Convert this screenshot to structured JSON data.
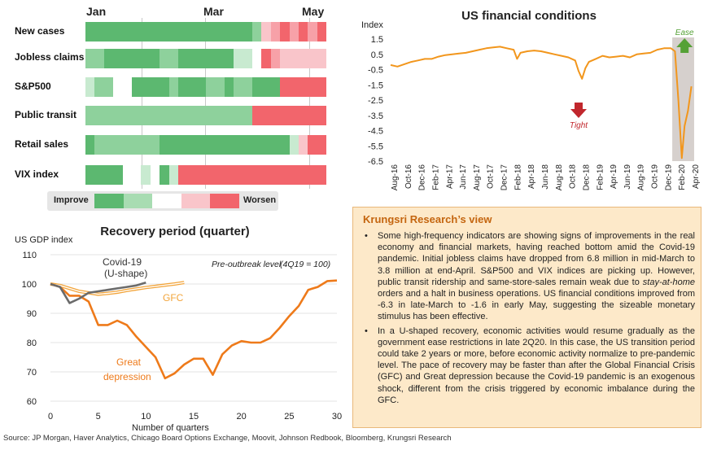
{
  "heatmap": {
    "months": [
      "Jan",
      "Mar",
      "May"
    ],
    "rows": [
      {
        "label": "New cases",
        "cells": [
          1,
          1,
          1,
          1,
          1,
          1,
          1,
          1,
          1,
          1,
          1,
          1,
          1,
          1,
          1,
          1,
          1,
          1,
          2,
          4,
          5,
          6,
          5,
          6,
          5,
          6
        ]
      },
      {
        "label": "Jobless claims",
        "cells": [
          2,
          2,
          1,
          1,
          1,
          1,
          1,
          1,
          2,
          2,
          1,
          1,
          1,
          1,
          1,
          1,
          3,
          3,
          0,
          6,
          5,
          4,
          4,
          4,
          4,
          4
        ]
      },
      {
        "label": "S&P500",
        "cells": [
          3,
          2,
          2,
          0,
          0,
          1,
          1,
          1,
          1,
          2,
          1,
          1,
          1,
          2,
          2,
          1,
          2,
          2,
          1,
          1,
          1,
          6,
          6,
          6,
          6,
          6
        ]
      },
      {
        "label": "Public transit",
        "cells": [
          2,
          2,
          2,
          2,
          2,
          2,
          2,
          2,
          2,
          2,
          2,
          2,
          2,
          2,
          2,
          2,
          2,
          2,
          6,
          6,
          6,
          6,
          6,
          6,
          6,
          6
        ]
      },
      {
        "label": "Retail sales",
        "cells": [
          1,
          2,
          2,
          2,
          2,
          2,
          2,
          2,
          1,
          1,
          1,
          1,
          1,
          1,
          1,
          1,
          1,
          1,
          1,
          1,
          1,
          1,
          3,
          4,
          6,
          6
        ]
      },
      {
        "label": "VIX index",
        "cells": [
          1,
          1,
          1,
          1,
          0,
          0,
          3,
          0,
          1,
          3,
          6,
          6,
          6,
          6,
          6,
          6,
          6,
          6,
          6,
          6,
          6,
          6,
          6,
          6,
          6,
          6
        ]
      }
    ],
    "legend": {
      "left_label": "Improve",
      "right_label": "Worsen",
      "colors": [
        "#5cb870",
        "#a8dcb2",
        "#ffffff",
        "#f9c5ca",
        "#f2656c"
      ]
    },
    "palette": [
      "#ffffff",
      "#5cb870",
      "#8ed19c",
      "#c8ead0",
      "#f9c5ca",
      "#f7a1a8",
      "#f2656c"
    ]
  },
  "chart_data": [
    {
      "type": "line",
      "title": "US financial conditions",
      "ylabel": "Index",
      "ylim": [
        -6.5,
        1.5
      ],
      "yticks": [
        "1.5",
        "0.5",
        "-0.5",
        "-1.5",
        "-2.5",
        "-3.5",
        "-4.5",
        "-5.5",
        "-6.5"
      ],
      "ytick_values": [
        1.5,
        0.5,
        -0.5,
        -1.5,
        -2.5,
        -3.5,
        -4.5,
        -5.5,
        -6.5
      ],
      "xticks": [
        "Aug-16",
        "Oct-16",
        "Dec-16",
        "Feb-17",
        "Apr-17",
        "Jun-17",
        "Aug-17",
        "Oct-17",
        "Dec-17",
        "Feb-18",
        "Apr-18",
        "Jun-18",
        "Aug-18",
        "Oct-18",
        "Dec-18",
        "Feb-19",
        "Apr-19",
        "Jun-19",
        "Aug-19",
        "Oct-19",
        "Dec-19",
        "Feb-20",
        "Apr-20"
      ],
      "x_months": [
        0,
        45
      ],
      "series": [
        {
          "color": "#f2961c",
          "points": [
            [
              0,
              -0.2
            ],
            [
              1,
              -0.3
            ],
            [
              2,
              -0.15
            ],
            [
              3,
              0.0
            ],
            [
              4,
              0.1
            ],
            [
              5,
              0.2
            ],
            [
              6,
              0.2
            ],
            [
              7,
              0.35
            ],
            [
              8,
              0.45
            ],
            [
              9,
              0.5
            ],
            [
              10,
              0.55
            ],
            [
              11,
              0.6
            ],
            [
              12,
              0.7
            ],
            [
              13,
              0.8
            ],
            [
              14,
              0.9
            ],
            [
              15,
              0.95
            ],
            [
              16,
              1.0
            ],
            [
              17,
              0.9
            ],
            [
              18,
              0.8
            ],
            [
              18.5,
              0.2
            ],
            [
              19,
              0.6
            ],
            [
              20,
              0.7
            ],
            [
              21,
              0.75
            ],
            [
              22,
              0.7
            ],
            [
              23,
              0.6
            ],
            [
              24,
              0.5
            ],
            [
              25,
              0.4
            ],
            [
              26,
              0.3
            ],
            [
              27,
              0.1
            ],
            [
              27.5,
              -0.6
            ],
            [
              28,
              -1.1
            ],
            [
              28.5,
              -0.4
            ],
            [
              29,
              0.0
            ],
            [
              30,
              0.2
            ],
            [
              31,
              0.4
            ],
            [
              32,
              0.3
            ],
            [
              33,
              0.35
            ],
            [
              34,
              0.4
            ],
            [
              35,
              0.3
            ],
            [
              36,
              0.5
            ],
            [
              37,
              0.55
            ],
            [
              38,
              0.6
            ],
            [
              39,
              0.8
            ],
            [
              40,
              0.9
            ],
            [
              41,
              0.9
            ],
            [
              41.6,
              0.7
            ],
            [
              42.1,
              -2.5
            ],
            [
              42.6,
              -6.3
            ],
            [
              43.0,
              -4.2
            ],
            [
              43.5,
              -3.2
            ],
            [
              44.0,
              -1.6
            ]
          ]
        }
      ],
      "shaded_region": [
        41.2,
        44.4
      ],
      "annotations": {
        "ease": "Ease",
        "tight": "Tight"
      },
      "arrow_colors": {
        "ease": "#55a136",
        "tight": "#c1272d"
      }
    },
    {
      "type": "line",
      "title": "Recovery period (quarter)",
      "ylabel": "US GDP index",
      "xlabel": "Number of quarters",
      "ylim": [
        60,
        110
      ],
      "xlim": [
        0,
        30
      ],
      "yticks": [
        "60",
        "70",
        "80",
        "90",
        "100",
        "110"
      ],
      "ytick_values": [
        60,
        70,
        80,
        90,
        100,
        110
      ],
      "xticks": [
        "0",
        "5",
        "10",
        "15",
        "20",
        "25",
        "30"
      ],
      "xtick_values": [
        0,
        5,
        10,
        15,
        20,
        25,
        30
      ],
      "note": "Pre-outbreak level",
      "note_value": "(4Q19 = 100)",
      "series": [
        {
          "name": "Covid-19",
          "subname": "(U-shape)",
          "color": "#6b6b6b",
          "x": [
            0,
            1,
            2,
            3,
            4,
            5,
            6,
            7,
            8,
            9,
            10
          ],
          "y": [
            100,
            99,
            93.5,
            95,
            97,
            97.5,
            98,
            98.5,
            99,
            99.5,
            100.5
          ]
        },
        {
          "name": "GFC",
          "color": "#f2a43a",
          "x": [
            0,
            1,
            2,
            3,
            4,
            5,
            6,
            7,
            8,
            9,
            10,
            11,
            12,
            13,
            14
          ],
          "y": [
            100,
            99.5,
            98.5,
            97.5,
            97,
            96.5,
            96.8,
            97.2,
            97.8,
            98.3,
            98.8,
            99.2,
            99.6,
            100,
            100.5
          ]
        },
        {
          "name": "Great",
          "subname": "depression",
          "color": "#ee7a1a",
          "x": [
            0,
            1,
            2,
            3,
            4,
            5,
            6,
            7,
            8,
            9,
            10,
            11,
            12,
            13,
            14,
            15,
            16,
            17,
            18,
            19,
            20,
            21,
            22,
            23,
            24,
            25,
            26,
            27,
            28,
            29,
            30
          ],
          "y": [
            100,
            99,
            96,
            96,
            94,
            86,
            86,
            87.5,
            86,
            82,
            78.5,
            75,
            67.8,
            69.5,
            72.5,
            74.5,
            74.5,
            69,
            76,
            79,
            80.5,
            80,
            80,
            81.5,
            85,
            89,
            92.5,
            98,
            99,
            101,
            101.2
          ]
        }
      ]
    }
  ],
  "view": {
    "title": "Krungsri Research’s view",
    "bullet": "•",
    "p1_a": "Some high-frequency indicators are showing signs of improvements in the real economy and financial markets, having reached bottom amid the Covid-19 pandemic. Initial jobless claims have dropped from 6.8 million in mid-March to 3.8 million at end-April. S&P500 and VIX indices are picking up. However, public transit ridership and same-store-sales remain weak due to ",
    "p1_em": "stay-at-home",
    "p1_b": " orders and a halt in business operations. US financial conditions improved from -6.3 in late-March to -1.6 in early May, suggesting the sizeable monetary stimulus has been effective.",
    "p2": "In a U-shaped recovery, economic activities would resume gradually as the government ease restrictions in late 2Q20. In this case, the US transition period could take 2 years or more, before economic activity normalize to pre-pandemic level. The pace of recovery may be faster than after the Global Financial Crisis (GFC) and Great depression because the Covid-19 pandemic is an exogenous shock, different from the crisis triggered by economic imbalance during the GFC."
  },
  "source": "Source: JP Morgan, Haver Analytics, Chicago Board Options Exchange, Moovit, Johnson Redbook, Bloomberg, Krungsri Research"
}
